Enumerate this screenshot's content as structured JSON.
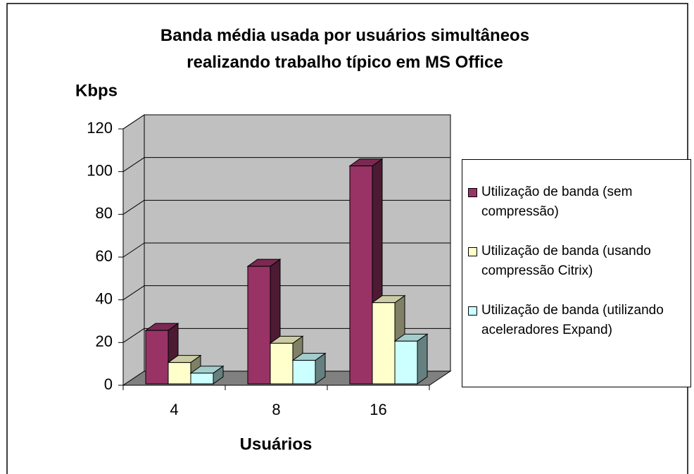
{
  "chart_data": {
    "type": "bar3d",
    "title": "Banda média usada por usuários simultâneos realizando trabalho típico em MS Office",
    "y_label": "Kbps",
    "x_label": "Usuários",
    "categories": [
      "4",
      "8",
      "16"
    ],
    "series": [
      {
        "name": "Utilização de banda (sem compressão)",
        "color": "#993366",
        "values": [
          25,
          55,
          102
        ]
      },
      {
        "name": "Utilização de banda (usando compressão Citrix)",
        "color": "#ffffcc",
        "values": [
          10,
          19,
          38
        ]
      },
      {
        "name": "Utilização de banda (utilizando aceleradores Expand)",
        "color": "#ccffff",
        "values": [
          5,
          11,
          20
        ]
      }
    ],
    "ylim": [
      0,
      120
    ],
    "yticks": [
      0,
      20,
      40,
      60,
      80,
      100,
      120
    ],
    "grid": true,
    "legend": "right"
  }
}
